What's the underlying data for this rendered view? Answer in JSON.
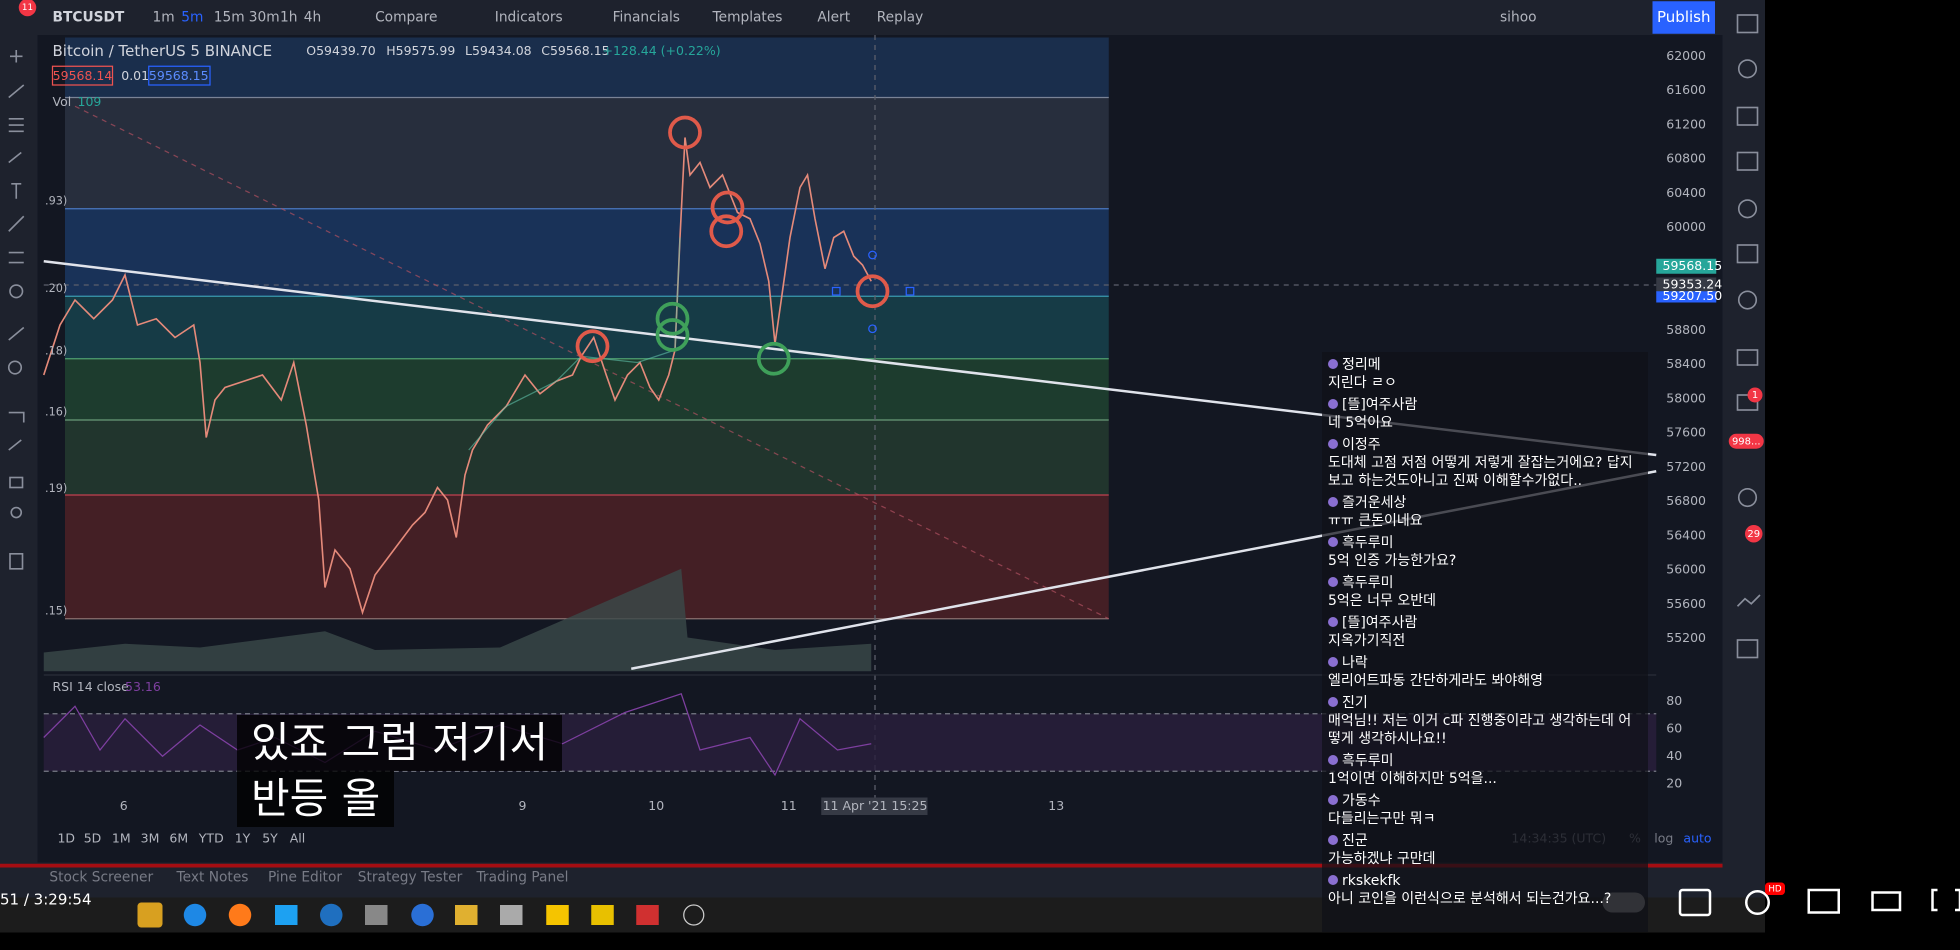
{
  "toolbar": {
    "symbol": "BTCUSDT",
    "intervals": [
      "1m",
      "5m",
      "15m",
      "30m",
      "1h",
      "4h"
    ],
    "buttons": [
      "Compare",
      "Indicators",
      "Financials",
      "Templates",
      "Alert",
      "Replay"
    ],
    "user": "sihoo",
    "publish": "Publish",
    "badge": "11"
  },
  "legend": {
    "title": "Bitcoin / TetherUS  5  BINANCE",
    "ohlc": [
      "O59439.70",
      "H59575.99",
      "L59434.08",
      "C59568.15",
      "+128.44 (+0.22%)"
    ],
    "bid": "59568.14",
    "spread": "0.01",
    "ask": "59568.15",
    "volume_label": "Vol",
    "volume_value": "109"
  },
  "fib_labels": [
    ".93)",
    ".20)",
    ".18)",
    ".16)",
    ".19)",
    ".15)"
  ],
  "price_axis": [
    62000,
    61600,
    61200,
    60800,
    60400,
    60000,
    58800,
    58400,
    58000,
    57600,
    57200,
    56800,
    56400,
    56000,
    55600,
    55200
  ],
  "price_labels": [
    "59568.15",
    "59353.24",
    "59207.50"
  ],
  "time_axis": [
    "6",
    "9",
    "10",
    "11",
    "11 Apr '21   15:25",
    "13"
  ],
  "ranges": [
    "1D",
    "5D",
    "1M",
    "3M",
    "6M",
    "YTD",
    "1Y",
    "5Y",
    "All"
  ],
  "axis_controls": [
    "14:34:35 (UTC)",
    "%",
    "log",
    "auto"
  ],
  "rsi": {
    "label": "RSI 14 close",
    "value": "53.16",
    "ticks": [
      80,
      60,
      40,
      20
    ]
  },
  "bottom_tabs": [
    "Stock Screener",
    "Text Notes",
    "Pine Editor",
    "Strategy Tester",
    "Trading Panel"
  ],
  "sidebar_badges": [
    "1",
    "998...",
    "29"
  ],
  "subtitle": [
    "있죠 그럼 저기서",
    "반등 올"
  ],
  "chat": [
    {
      "name": "정리메",
      "text": "지린다 ㄹㅇ"
    },
    {
      "name": "[뜰]여주사람",
      "text": "네 5억이요"
    },
    {
      "name": "이정주",
      "text": "도대체 고점 저점 어떻게 저렇게 잘잡는거에요? 답지보고 하는것도아니고 진짜 이해할수가없다.."
    },
    {
      "name": "즐거운세상",
      "text": "ㅠㅠ 큰돈이네요"
    },
    {
      "name": "흑두루미",
      "text": "5억 인증 가능한가요?"
    },
    {
      "name": "흑두루미",
      "text": "5억은 너무 오반데"
    },
    {
      "name": "[뜰]여주사람",
      "text": "지옥가기직전"
    },
    {
      "name": "나락",
      "text": "엘리어트파동 간단하게라도 봐야해영"
    },
    {
      "name": "진기",
      "text": "매억님!! 저는 이거 c파 진행중이라고 생각하는데 어떻게 생각하시나요!!"
    },
    {
      "name": "흑두루미",
      "text": "1억이면 이해하지만 5억을..."
    },
    {
      "name": "가동수",
      "text": "다들리는구만 뭐ㅋ"
    },
    {
      "name": "진군",
      "text": "가능하겠냐 구만데"
    },
    {
      "name": "rkskekfk",
      "text": "아니 코인을 이런식으로 분석해서 되는건가요...?"
    }
  ],
  "video": {
    "time": "51 / 3:29:54",
    "hd": "HD"
  }
}
